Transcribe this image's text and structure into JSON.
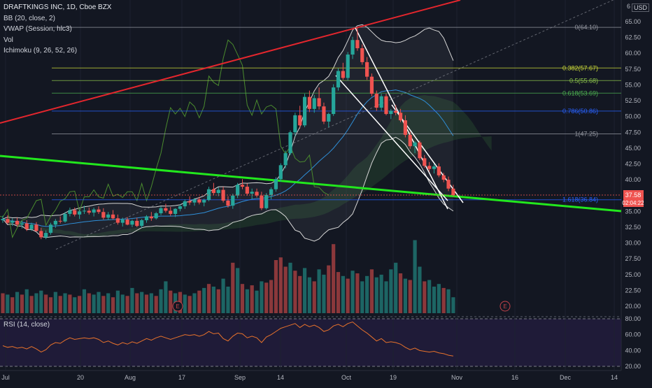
{
  "legend": {
    "title": "DRAFTKINGS INC, 1D, Cboe BZX",
    "bb": "BB (20, close, 2)",
    "vwap": "VWAP (Session, hlc3)",
    "vol": "Vol",
    "ichimoku": "Ichimoku (9, 26, 52, 26)",
    "rsi": "RSI (14, close)"
  },
  "currency": "USD",
  "colors": {
    "background": "#131722",
    "up": "#26a69a",
    "down": "#ef5350",
    "trend_red": "#e4262d",
    "trend_green": "#22e81d",
    "bb": "#d6d6d6",
    "rsi_line": "#e8722b",
    "rsi_band": "#7e57c2"
  },
  "price_axis": [
    "65.00",
    "62.50",
    "60.00",
    "57.50",
    "55.00",
    "52.50",
    "50.00",
    "47.50",
    "45.00",
    "42.50",
    "40.00",
    "37.50",
    "35.00",
    "32.50",
    "30.00",
    "27.50",
    "25.00",
    "22.50",
    "20.00"
  ],
  "price_axis_top_partial": "6",
  "rsi_axis": [
    "80.00",
    "60.00",
    "40.00",
    "20.00"
  ],
  "time_axis": [
    "Jul",
    "20",
    "Aug",
    "17",
    "Sep",
    "14",
    "Oct",
    "19",
    "Nov",
    "16",
    "Dec",
    "14"
  ],
  "last_price": "37.58",
  "countdown": "02:04:22",
  "fib_levels": [
    {
      "label": "0(64.10)",
      "price": 64.1,
      "color": "#9598a1"
    },
    {
      "label": "0.382(57.67)",
      "price": 57.67,
      "color": "#cddc39"
    },
    {
      "label": "0.5(55.68)",
      "price": 55.68,
      "color": "#8bc34a"
    },
    {
      "label": "0.618(53.69)",
      "price": 53.69,
      "color": "#4caf50"
    },
    {
      "label": "0.786(50.86)",
      "price": 50.86,
      "color": "#2962ff"
    },
    {
      "label": "1(47.25)",
      "price": 47.25,
      "color": "#9598a1"
    },
    {
      "label": "1.618(36.84)",
      "price": 36.84,
      "color": "#2962ff"
    }
  ],
  "earnings_marker": "E",
  "chart_data": {
    "type": "candlestick",
    "title": "DRAFTKINGS INC, 1D, Cboe BZX",
    "y_range": [
      17.5,
      67
    ],
    "rsi_range": [
      20,
      80
    ],
    "candles": [
      [
        33.6,
        34.3,
        33.2,
        33.8
      ],
      [
        33.8,
        34.4,
        33.0,
        33.2
      ],
      [
        33.2,
        33.9,
        32.7,
        33.5
      ],
      [
        33.5,
        34.0,
        32.6,
        32.9
      ],
      [
        32.9,
        33.5,
        32.3,
        33.1
      ],
      [
        33.1,
        33.6,
        31.9,
        32.2
      ],
      [
        32.2,
        33.2,
        31.9,
        32.9
      ],
      [
        32.9,
        33.3,
        31.8,
        31.9
      ],
      [
        31.9,
        32.4,
        30.6,
        30.9
      ],
      [
        30.9,
        32.0,
        30.6,
        31.6
      ],
      [
        31.6,
        33.2,
        31.3,
        32.9
      ],
      [
        32.9,
        33.8,
        32.4,
        33.5
      ],
      [
        33.5,
        34.2,
        33.1,
        33.4
      ],
      [
        33.4,
        34.9,
        33.2,
        34.6
      ],
      [
        34.6,
        35.6,
        34.2,
        35.2
      ],
      [
        35.2,
        35.6,
        34.2,
        34.5
      ],
      [
        34.5,
        35.3,
        33.8,
        35.0
      ],
      [
        35.0,
        35.9,
        34.6,
        35.1
      ],
      [
        35.1,
        35.6,
        34.5,
        34.8
      ],
      [
        34.8,
        35.6,
        34.2,
        35.3
      ],
      [
        35.3,
        35.8,
        34.6,
        34.9
      ],
      [
        34.9,
        35.5,
        33.7,
        34.0
      ],
      [
        34.0,
        34.9,
        33.6,
        34.5
      ],
      [
        34.5,
        35.2,
        33.7,
        33.9
      ],
      [
        33.9,
        34.5,
        32.9,
        33.2
      ],
      [
        33.2,
        34.0,
        32.6,
        33.7
      ],
      [
        33.7,
        34.1,
        32.8,
        32.9
      ],
      [
        32.9,
        33.7,
        32.5,
        33.5
      ],
      [
        33.5,
        34.0,
        32.5,
        32.7
      ],
      [
        32.7,
        33.8,
        32.4,
        33.6
      ],
      [
        33.6,
        34.4,
        33.2,
        34.2
      ],
      [
        34.2,
        34.9,
        33.5,
        33.9
      ],
      [
        33.9,
        34.9,
        33.7,
        34.7
      ],
      [
        34.7,
        35.8,
        34.4,
        35.5
      ],
      [
        35.5,
        36.2,
        34.8,
        35.1
      ],
      [
        35.1,
        35.7,
        34.3,
        34.6
      ],
      [
        34.6,
        35.5,
        34.1,
        35.4
      ],
      [
        35.4,
        36.1,
        35.0,
        35.8
      ],
      [
        35.8,
        36.9,
        35.4,
        36.6
      ],
      [
        36.6,
        37.4,
        36.0,
        36.4
      ],
      [
        36.4,
        37.1,
        35.9,
        36.9
      ],
      [
        36.9,
        37.3,
        36.1,
        36.4
      ],
      [
        36.4,
        37.0,
        35.8,
        36.8
      ],
      [
        36.8,
        38.9,
        36.6,
        38.5
      ],
      [
        38.5,
        39.5,
        37.6,
        37.9
      ],
      [
        37.9,
        38.8,
        37.4,
        38.4
      ],
      [
        38.4,
        38.9,
        36.4,
        36.7
      ],
      [
        36.7,
        37.4,
        35.6,
        35.9
      ],
      [
        35.9,
        37.8,
        35.4,
        37.5
      ],
      [
        37.5,
        39.5,
        37.1,
        39.2
      ],
      [
        39.2,
        40.1,
        38.5,
        38.9
      ],
      [
        38.9,
        39.4,
        37.5,
        37.8
      ],
      [
        37.8,
        38.6,
        36.9,
        38.1
      ],
      [
        38.1,
        38.6,
        37.2,
        37.5
      ],
      [
        37.5,
        38.1,
        35.2,
        35.5
      ],
      [
        35.5,
        37.9,
        35.3,
        37.6
      ],
      [
        37.6,
        38.8,
        36.9,
        38.5
      ],
      [
        38.5,
        40.4,
        38.1,
        40.1
      ],
      [
        40.1,
        42.6,
        39.7,
        42.3
      ],
      [
        42.3,
        44.6,
        41.8,
        44.2
      ],
      [
        44.2,
        47.8,
        43.9,
        47.5
      ],
      [
        47.5,
        50.6,
        46.9,
        50.2
      ],
      [
        50.2,
        51.7,
        48.1,
        48.6
      ],
      [
        48.6,
        53.6,
        48.3,
        53.1
      ],
      [
        53.1,
        54.1,
        50.7,
        51.2
      ],
      [
        51.2,
        53.4,
        50.6,
        52.9
      ],
      [
        52.9,
        54.6,
        51.1,
        51.6
      ],
      [
        51.6,
        52.2,
        48.8,
        49.2
      ],
      [
        49.2,
        50.6,
        48.3,
        50.4
      ],
      [
        50.4,
        55.1,
        50.1,
        54.6
      ],
      [
        54.6,
        57.6,
        54.1,
        57.2
      ],
      [
        57.2,
        58.5,
        55.8,
        56.1
      ],
      [
        56.1,
        60.2,
        55.7,
        59.8
      ],
      [
        59.8,
        62.6,
        59.1,
        62.1
      ],
      [
        62.1,
        64.1,
        60.4,
        60.8
      ],
      [
        60.8,
        61.4,
        58.2,
        58.6
      ],
      [
        58.6,
        59.4,
        55.8,
        56.3
      ],
      [
        56.3,
        56.8,
        53.2,
        53.6
      ],
      [
        53.6,
        54.1,
        50.9,
        51.4
      ],
      [
        51.4,
        53.6,
        50.9,
        53.2
      ],
      [
        53.2,
        53.6,
        50.2,
        50.4
      ],
      [
        50.4,
        51.2,
        49.6,
        50.9
      ],
      [
        50.9,
        51.8,
        50.2,
        50.6
      ],
      [
        50.6,
        51.2,
        49.1,
        49.4
      ],
      [
        49.4,
        50.2,
        46.7,
        47.1
      ],
      [
        47.1,
        47.6,
        44.9,
        45.3
      ],
      [
        45.3,
        46.1,
        44.2,
        45.9
      ],
      [
        45.9,
        46.2,
        43.1,
        43.4
      ],
      [
        43.4,
        43.9,
        41.9,
        42.2
      ],
      [
        42.2,
        42.8,
        41.3,
        41.7
      ],
      [
        41.7,
        42.5,
        41.0,
        42.1
      ],
      [
        42.1,
        42.6,
        40.4,
        40.7
      ],
      [
        40.7,
        41.1,
        39.6,
        40.0
      ],
      [
        40.0,
        40.5,
        38.2,
        38.6
      ],
      [
        38.6,
        39.2,
        37.3,
        37.58
      ]
    ],
    "volume": [
      [
        15,
        0
      ],
      [
        14,
        1
      ],
      [
        12,
        0
      ],
      [
        16,
        1
      ],
      [
        14,
        0
      ],
      [
        18,
        1
      ],
      [
        13,
        0
      ],
      [
        15,
        1
      ],
      [
        17,
        1
      ],
      [
        14,
        0
      ],
      [
        12,
        0
      ],
      [
        16,
        1
      ],
      [
        13,
        0
      ],
      [
        15,
        1
      ],
      [
        14,
        0
      ],
      [
        12,
        1
      ],
      [
        13,
        0
      ],
      [
        18,
        1
      ],
      [
        15,
        0
      ],
      [
        14,
        1
      ],
      [
        16,
        1
      ],
      [
        13,
        0
      ],
      [
        15,
        1
      ],
      [
        12,
        0
      ],
      [
        17,
        1
      ],
      [
        14,
        1
      ],
      [
        13,
        0
      ],
      [
        19,
        1
      ],
      [
        15,
        0
      ],
      [
        16,
        1
      ],
      [
        14,
        0
      ],
      [
        15,
        1
      ],
      [
        13,
        0
      ],
      [
        18,
        1
      ],
      [
        24,
        1
      ],
      [
        17,
        0
      ],
      [
        15,
        1
      ],
      [
        16,
        0
      ],
      [
        14,
        1
      ],
      [
        13,
        0
      ],
      [
        15,
        1
      ],
      [
        17,
        0
      ],
      [
        19,
        1
      ],
      [
        22,
        0
      ],
      [
        20,
        1
      ],
      [
        18,
        0
      ],
      [
        26,
        1
      ],
      [
        20,
        1
      ],
      [
        38,
        0
      ],
      [
        34,
        1
      ],
      [
        22,
        0
      ],
      [
        18,
        1
      ],
      [
        21,
        0
      ],
      [
        17,
        1
      ],
      [
        24,
        1
      ],
      [
        23,
        0
      ],
      [
        25,
        0
      ],
      [
        40,
        0
      ],
      [
        42,
        0
      ],
      [
        35,
        0
      ],
      [
        38,
        1
      ],
      [
        32,
        0
      ],
      [
        28,
        0
      ],
      [
        34,
        1
      ],
      [
        27,
        1
      ],
      [
        24,
        0
      ],
      [
        33,
        1
      ],
      [
        29,
        1
      ],
      [
        36,
        0
      ],
      [
        52,
        0
      ],
      [
        31,
        0
      ],
      [
        28,
        1
      ],
      [
        26,
        0
      ],
      [
        32,
        1
      ],
      [
        30,
        0
      ],
      [
        24,
        1
      ],
      [
        28,
        1
      ],
      [
        33,
        0
      ],
      [
        27,
        1
      ],
      [
        29,
        1
      ],
      [
        24,
        1
      ],
      [
        33,
        1
      ],
      [
        38,
        1
      ],
      [
        30,
        0
      ],
      [
        26,
        1
      ],
      [
        25,
        0
      ],
      [
        55,
        1
      ],
      [
        35,
        1
      ],
      [
        24,
        0
      ],
      [
        25,
        1
      ],
      [
        20,
        1
      ],
      [
        22,
        1
      ],
      [
        19,
        0
      ],
      [
        18,
        1
      ],
      [
        12,
        1
      ]
    ],
    "rsi": [
      46,
      44,
      45,
      43,
      44,
      42,
      45,
      42,
      38,
      41,
      47,
      50,
      49,
      53,
      56,
      54,
      55,
      56,
      55,
      56,
      54,
      50,
      52,
      49,
      47,
      50,
      48,
      51,
      49,
      52,
      55,
      53,
      56,
      58,
      56,
      54,
      56,
      58,
      60,
      59,
      60,
      58,
      60,
      64,
      61,
      62,
      55,
      52,
      58,
      62,
      61,
      56,
      58,
      56,
      50,
      57,
      60,
      64,
      68,
      70,
      72,
      74,
      69,
      73,
      70,
      72,
      69,
      64,
      66,
      71,
      73,
      70,
      74,
      76,
      71,
      66,
      62,
      57,
      52,
      55,
      50,
      51,
      50,
      48,
      44,
      41,
      43,
      40,
      39,
      38,
      39,
      37,
      36,
      34,
      33
    ]
  }
}
